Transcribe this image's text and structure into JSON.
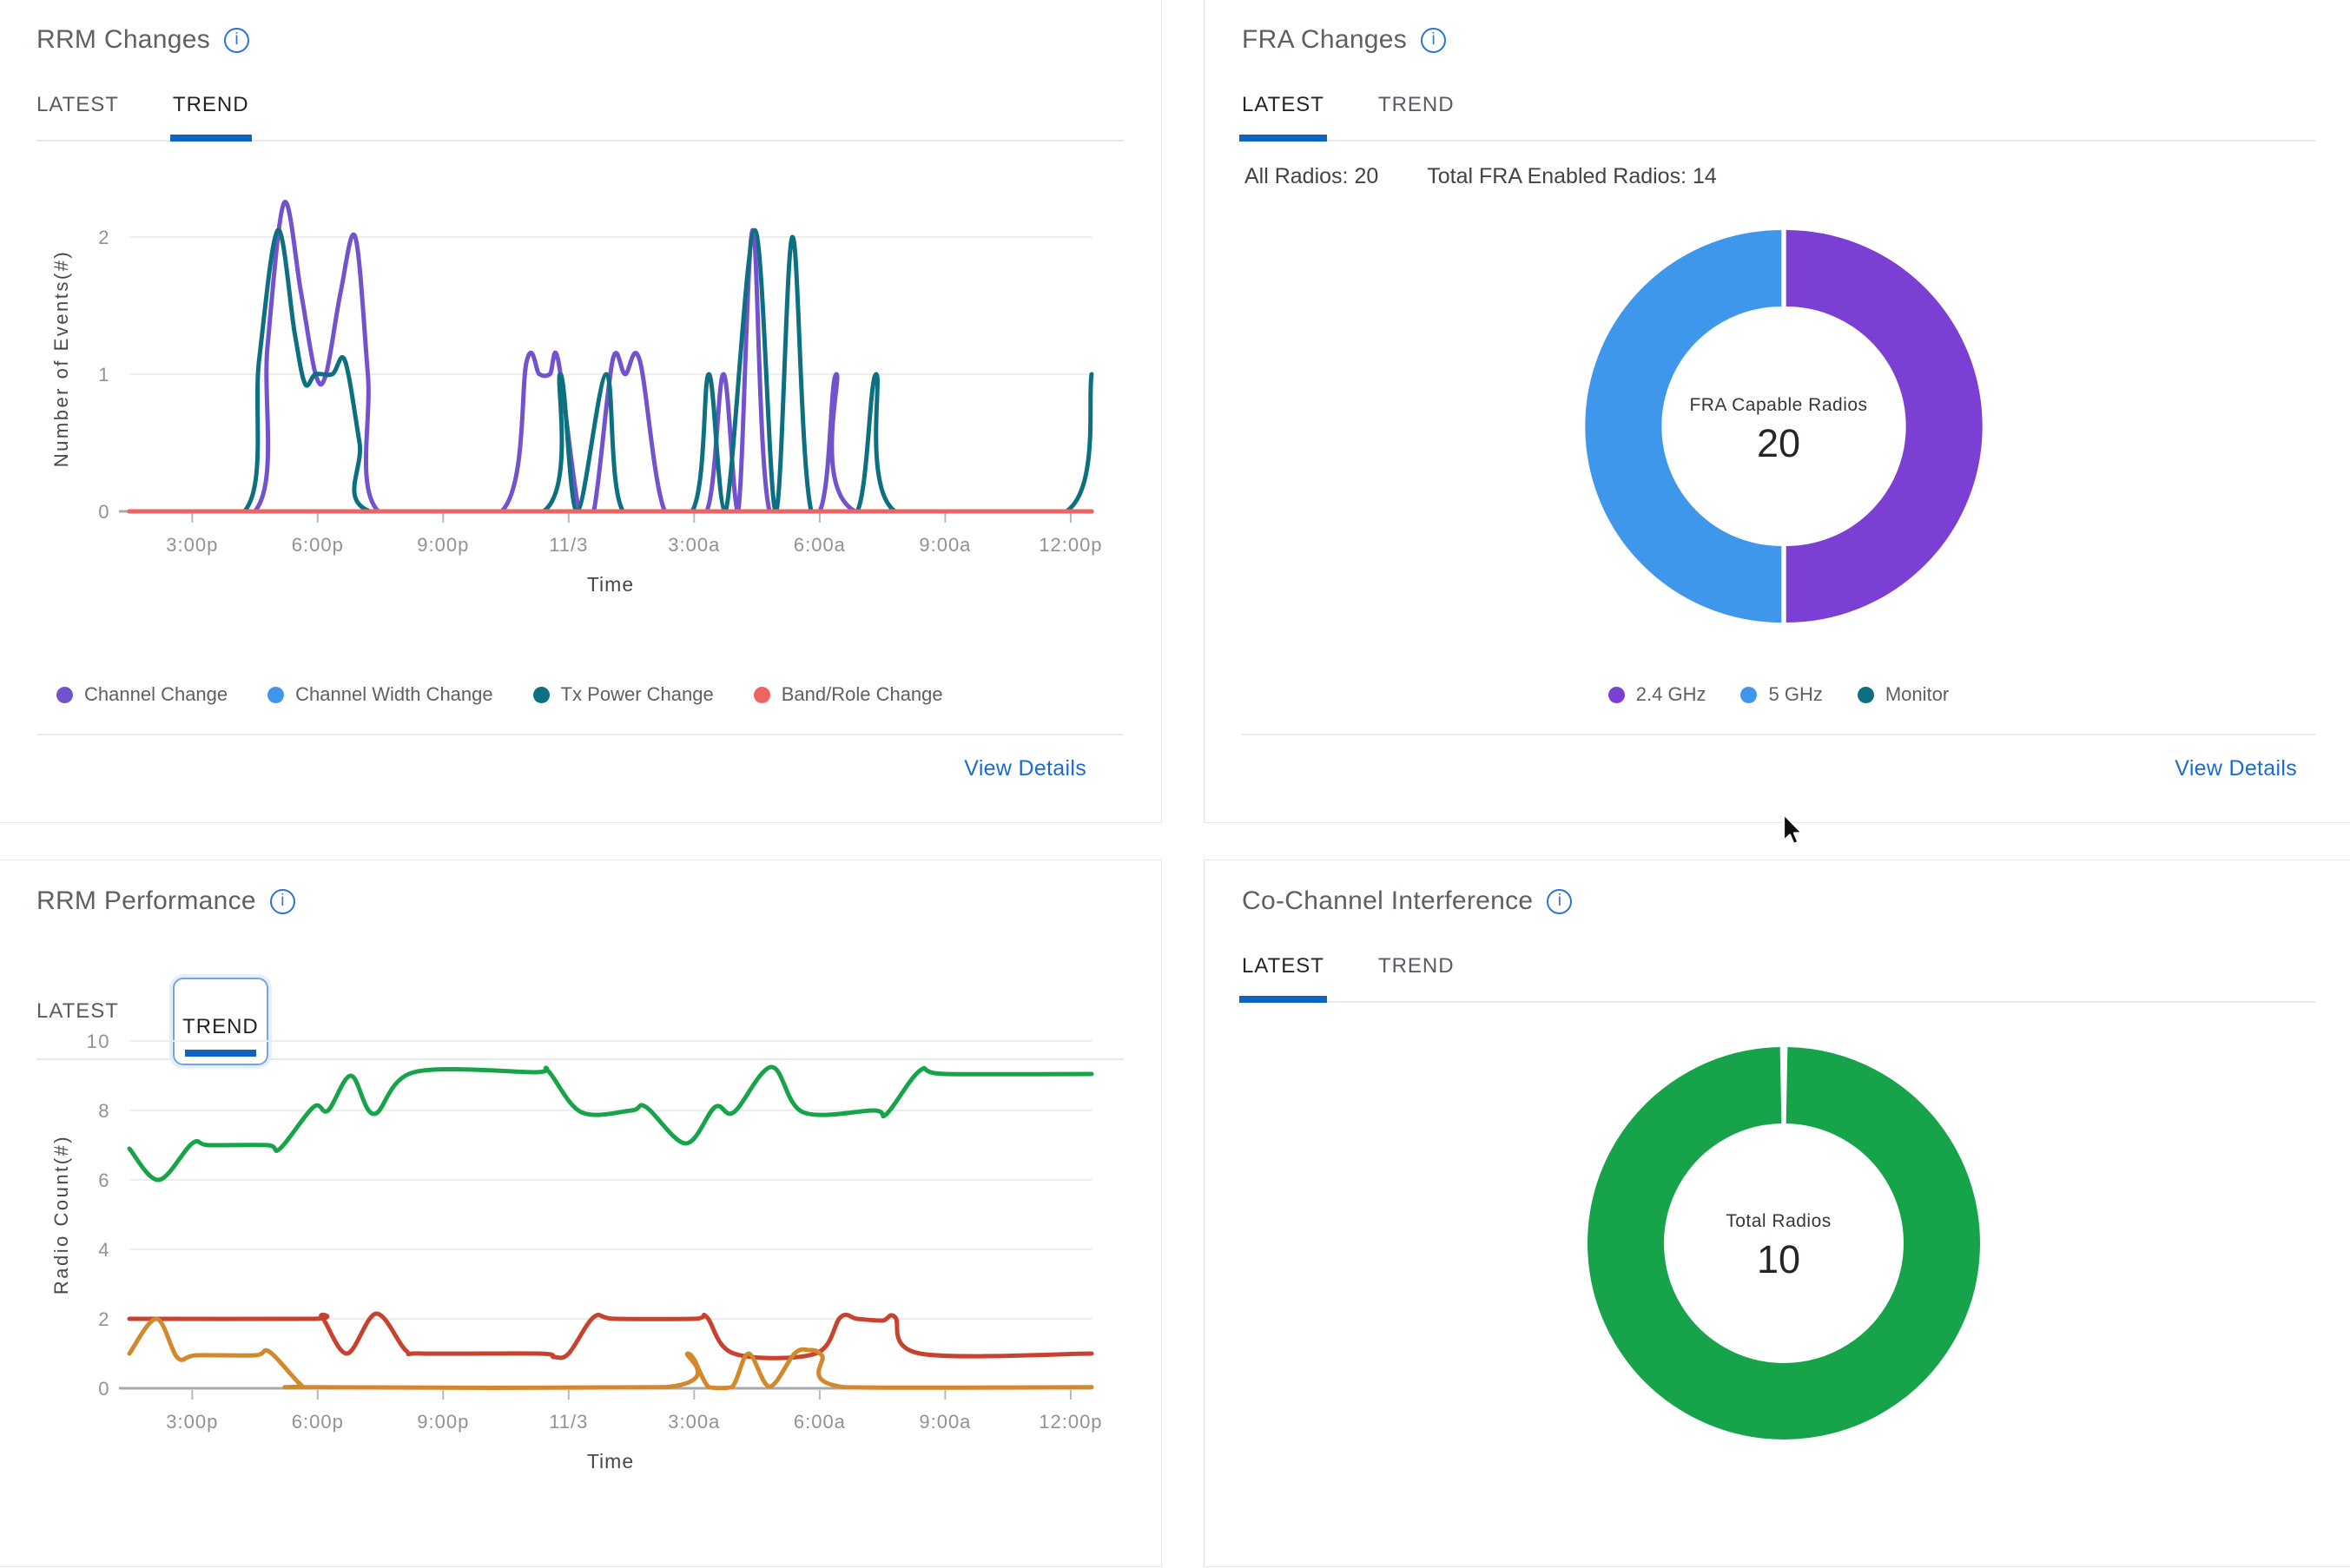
{
  "icons": {
    "info": "i"
  },
  "cards": {
    "rrm_changes": {
      "title": "RRM Changes",
      "tabs": [
        {
          "label": "LATEST"
        },
        {
          "label": "TREND"
        }
      ],
      "active_tab": "TREND",
      "legend": [
        {
          "label": "Channel Change",
          "color": "#7352cd"
        },
        {
          "label": "Channel Width Change",
          "color": "#3e97ea"
        },
        {
          "label": "Tx Power Change",
          "color": "#0c7080"
        },
        {
          "label": "Band/Role Change",
          "color": "#ee6462"
        }
      ],
      "view_details": "View Details"
    },
    "fra_changes": {
      "title": "FRA Changes",
      "tabs": [
        {
          "label": "LATEST"
        },
        {
          "label": "TREND"
        }
      ],
      "active_tab": "LATEST",
      "stats": {
        "all_radios": "All Radios: 20",
        "total_fra": "Total FRA Enabled Radios: 14"
      },
      "view_details": "View Details"
    },
    "rrm_performance": {
      "title": "RRM Performance",
      "tabs": [
        {
          "label": "LATEST"
        },
        {
          "label": "TREND"
        }
      ],
      "active_tab": "TREND"
    },
    "co_channel": {
      "title": "Co-Channel Interference",
      "tabs": [
        {
          "label": "LATEST"
        },
        {
          "label": "TREND"
        }
      ],
      "active_tab": "LATEST"
    }
  },
  "chart_data": [
    {
      "id": "rrm_changes_trend",
      "type": "line",
      "xlabel": "Time",
      "ylabel": "Number of Events(#)",
      "ylim": [
        0,
        2.6
      ],
      "yticks": [
        0,
        1,
        2
      ],
      "x_range_hours": [
        13.5,
        36.5
      ],
      "xticks": [
        {
          "h": 15,
          "label": "3:00p"
        },
        {
          "h": 18,
          "label": "6:00p"
        },
        {
          "h": 21,
          "label": "9:00p"
        },
        {
          "h": 24,
          "label": "11/3"
        },
        {
          "h": 27,
          "label": "3:00a"
        },
        {
          "h": 30,
          "label": "6:00a"
        },
        {
          "h": 33,
          "label": "9:00a"
        },
        {
          "h": 36,
          "label": "12:00p"
        }
      ],
      "series": [
        {
          "name": "Channel Change",
          "color": "#7352cd",
          "points": [
            [
              13.5,
              0
            ],
            [
              16.5,
              0
            ],
            [
              16.8,
              1.2
            ],
            [
              17.2,
              2.25
            ],
            [
              17.6,
              1.6
            ],
            [
              17.95,
              1.0
            ],
            [
              18.2,
              1.0
            ],
            [
              18.55,
              1.6
            ],
            [
              18.9,
              2.0
            ],
            [
              19.2,
              1.0
            ],
            [
              19.45,
              0
            ],
            [
              22.4,
              0
            ],
            [
              23.0,
              1.1
            ],
            [
              23.3,
              1.0
            ],
            [
              23.55,
              1.0
            ],
            [
              23.75,
              1.1
            ],
            [
              24.25,
              0
            ],
            [
              24.6,
              0
            ],
            [
              25.05,
              1.1
            ],
            [
              25.35,
              1.0
            ],
            [
              25.7,
              1.1
            ],
            [
              26.3,
              0
            ],
            [
              27.3,
              0
            ],
            [
              27.7,
              1.0
            ],
            [
              28.05,
              0
            ],
            [
              28.4,
              2.05
            ],
            [
              28.8,
              0
            ],
            [
              30.0,
              0
            ],
            [
              30.4,
              1.0
            ],
            [
              30.85,
              0
            ],
            [
              36.5,
              0
            ]
          ]
        },
        {
          "name": "Channel Width Change",
          "color": "#3e97ea",
          "points": [
            [
              13.5,
              0
            ],
            [
              36.5,
              0
            ]
          ]
        },
        {
          "name": "Tx Power Change",
          "color": "#0c7080",
          "points": [
            [
              13.5,
              0
            ],
            [
              16.25,
              0
            ],
            [
              16.6,
              1.1
            ],
            [
              17.05,
              2.05
            ],
            [
              17.45,
              1.3
            ],
            [
              17.7,
              0.93
            ],
            [
              17.95,
              1.0
            ],
            [
              18.35,
              1.0
            ],
            [
              18.65,
              1.1
            ],
            [
              19.0,
              0.5
            ],
            [
              19.25,
              0
            ],
            [
              23.4,
              0
            ],
            [
              23.8,
              1.0
            ],
            [
              24.2,
              0
            ],
            [
              24.9,
              1.0
            ],
            [
              25.3,
              0
            ],
            [
              26.95,
              0
            ],
            [
              27.35,
              1.0
            ],
            [
              27.75,
              0
            ],
            [
              28.45,
              2.05
            ],
            [
              28.95,
              0
            ],
            [
              29.35,
              2.0
            ],
            [
              29.8,
              0
            ],
            [
              30.9,
              0
            ],
            [
              31.35,
              1.0
            ],
            [
              31.8,
              0
            ],
            [
              35.9,
              0
            ],
            [
              36.5,
              1.0
            ]
          ]
        },
        {
          "name": "Band/Role Change",
          "color": "#ee6462",
          "points": [
            [
              13.5,
              0
            ],
            [
              36.5,
              0
            ]
          ]
        }
      ]
    },
    {
      "id": "rrm_performance_trend",
      "type": "line",
      "xlabel": "Time",
      "ylabel": "Radio Count(#)",
      "ylim": [
        0,
        10
      ],
      "yticks": [
        0,
        2,
        4,
        6,
        8,
        10
      ],
      "x_range_hours": [
        13.5,
        36.5
      ],
      "xticks": [
        {
          "h": 15,
          "label": "3:00p"
        },
        {
          "h": 18,
          "label": "6:00p"
        },
        {
          "h": 21,
          "label": "9:00p"
        },
        {
          "h": 24,
          "label": "11/3"
        },
        {
          "h": 27,
          "label": "3:00a"
        },
        {
          "h": 30,
          "label": "6:00a"
        },
        {
          "h": 33,
          "label": "9:00a"
        },
        {
          "h": 36,
          "label": "12:00p"
        }
      ],
      "series": [
        {
          "color": "#17a449",
          "points": [
            [
              13.5,
              6.9
            ],
            [
              14.2,
              6.0
            ],
            [
              15.0,
              7.05
            ],
            [
              15.4,
              7.0
            ],
            [
              16.8,
              7.0
            ],
            [
              17.1,
              6.9
            ],
            [
              17.9,
              8.1
            ],
            [
              18.25,
              8.0
            ],
            [
              18.8,
              9.0
            ],
            [
              19.35,
              7.9
            ],
            [
              20.3,
              9.1
            ],
            [
              23.2,
              9.1
            ],
            [
              23.5,
              9.15
            ],
            [
              24.3,
              7.95
            ],
            [
              25.5,
              8.0
            ],
            [
              25.85,
              8.1
            ],
            [
              26.8,
              7.05
            ],
            [
              27.5,
              8.1
            ],
            [
              27.95,
              7.95
            ],
            [
              28.85,
              9.25
            ],
            [
              29.6,
              7.95
            ],
            [
              31.3,
              8.0
            ],
            [
              31.6,
              7.9
            ],
            [
              32.4,
              9.15
            ],
            [
              33.0,
              9.05
            ],
            [
              36.5,
              9.05
            ]
          ]
        },
        {
          "color": "#c7422f",
          "points": [
            [
              13.5,
              2.0
            ],
            [
              17.85,
              2.0
            ],
            [
              18.1,
              2.05
            ],
            [
              18.7,
              1.0
            ],
            [
              19.4,
              2.15
            ],
            [
              20.1,
              1.1
            ],
            [
              20.5,
              1.0
            ],
            [
              23.3,
              1.0
            ],
            [
              23.65,
              0.9
            ],
            [
              24.0,
              1.0
            ],
            [
              24.6,
              2.05
            ],
            [
              25.1,
              2.0
            ],
            [
              27.0,
              2.0
            ],
            [
              27.3,
              2.05
            ],
            [
              27.95,
              1.0
            ],
            [
              29.9,
              1.0
            ],
            [
              30.5,
              2.05
            ],
            [
              30.9,
              2.0
            ],
            [
              31.5,
              1.95
            ],
            [
              31.8,
              2.05
            ],
            [
              32.4,
              1.0
            ],
            [
              36.5,
              1.0
            ]
          ]
        },
        {
          "color": "#d1892b",
          "points": [
            [
              13.5,
              1.0
            ],
            [
              14.15,
              2.0
            ],
            [
              14.65,
              0.88
            ],
            [
              15.1,
              0.95
            ],
            [
              16.5,
              0.95
            ],
            [
              16.85,
              1.05
            ],
            [
              17.6,
              0.1
            ],
            [
              17.9,
              0.03
            ],
            [
              26.3,
              0.03
            ],
            [
              26.85,
              1.0
            ],
            [
              27.35,
              0.03
            ],
            [
              27.9,
              0.03
            ],
            [
              28.3,
              1.0
            ],
            [
              28.8,
              0.05
            ],
            [
              29.4,
              1.0
            ],
            [
              29.75,
              1.1
            ],
            [
              30.05,
              0.95
            ],
            [
              30.6,
              0.03
            ],
            [
              36.5,
              0.03
            ]
          ]
        }
      ]
    },
    {
      "id": "fra_radios",
      "type": "pie",
      "center_label": "FRA Capable Radios",
      "center_value": "20",
      "segments": [
        {
          "label": "2.4 GHz",
          "value": 10,
          "color": "#7c3fd3"
        },
        {
          "label": "5 GHz",
          "value": 10,
          "color": "#3e97ea"
        },
        {
          "label": "Monitor",
          "value": 0,
          "color": "#0c7080"
        }
      ]
    },
    {
      "id": "cci_radios",
      "type": "pie",
      "center_label": "Total Radios",
      "center_value": "10",
      "segments": [
        {
          "value": 10,
          "color": "#16a34a"
        }
      ]
    }
  ]
}
